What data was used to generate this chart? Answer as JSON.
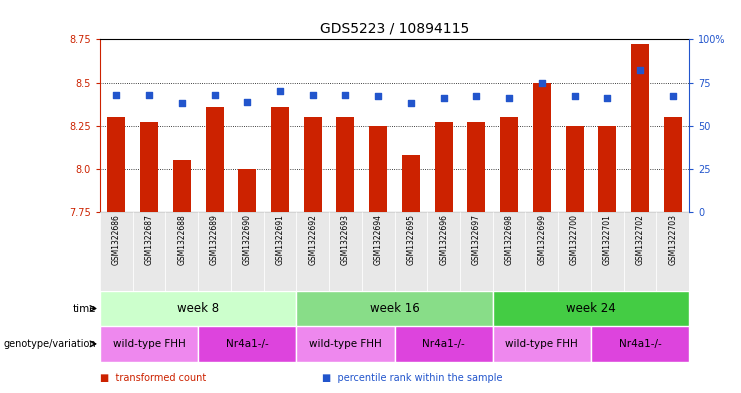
{
  "title": "GDS5223 / 10894115",
  "samples": [
    "GSM1322686",
    "GSM1322687",
    "GSM1322688",
    "GSM1322689",
    "GSM1322690",
    "GSM1322691",
    "GSM1322692",
    "GSM1322693",
    "GSM1322694",
    "GSM1322695",
    "GSM1322696",
    "GSM1322697",
    "GSM1322698",
    "GSM1322699",
    "GSM1322700",
    "GSM1322701",
    "GSM1322702",
    "GSM1322703"
  ],
  "transformed_count": [
    8.3,
    8.27,
    8.05,
    8.36,
    8.0,
    8.36,
    8.3,
    8.3,
    8.25,
    8.08,
    8.27,
    8.27,
    8.3,
    8.5,
    8.25,
    8.25,
    8.72,
    8.3
  ],
  "percentile_rank": [
    68,
    68,
    63,
    68,
    64,
    70,
    68,
    68,
    67,
    63,
    66,
    67,
    66,
    75,
    67,
    66,
    82,
    67
  ],
  "ymin": 7.75,
  "ymax": 8.75,
  "y2min": 0,
  "y2max": 100,
  "yticks": [
    7.75,
    8.0,
    8.25,
    8.5,
    8.75
  ],
  "y2ticks": [
    0,
    25,
    50,
    75,
    100
  ],
  "y2ticklabels": [
    "0",
    "25",
    "50",
    "75",
    "100%"
  ],
  "bar_color": "#cc2200",
  "dot_color": "#2255cc",
  "bar_width": 0.55,
  "time_groups": [
    {
      "label": "week 8",
      "start": 0,
      "end": 5,
      "color": "#ccffcc"
    },
    {
      "label": "week 16",
      "start": 6,
      "end": 11,
      "color": "#88dd88"
    },
    {
      "label": "week 24",
      "start": 12,
      "end": 17,
      "color": "#44cc44"
    }
  ],
  "genotype_groups": [
    {
      "label": "wild-type FHH",
      "start": 0,
      "end": 2,
      "color": "#ee88ee"
    },
    {
      "label": "Nr4a1-/-",
      "start": 3,
      "end": 5,
      "color": "#dd44dd"
    },
    {
      "label": "wild-type FHH",
      "start": 6,
      "end": 8,
      "color": "#ee88ee"
    },
    {
      "label": "Nr4a1-/-",
      "start": 9,
      "end": 11,
      "color": "#dd44dd"
    },
    {
      "label": "wild-type FHH",
      "start": 12,
      "end": 14,
      "color": "#ee88ee"
    },
    {
      "label": "Nr4a1-/-",
      "start": 15,
      "end": 17,
      "color": "#dd44dd"
    }
  ],
  "legend_items": [
    {
      "label": "transformed count",
      "color": "#cc2200"
    },
    {
      "label": "percentile rank within the sample",
      "color": "#2255cc"
    }
  ],
  "row_label_time": "time",
  "row_label_genotype": "genotype/variation",
  "title_fontsize": 10,
  "tick_fontsize": 7,
  "xtick_fontsize": 5.5,
  "label_fontsize": 7.5,
  "legend_fontsize": 7
}
